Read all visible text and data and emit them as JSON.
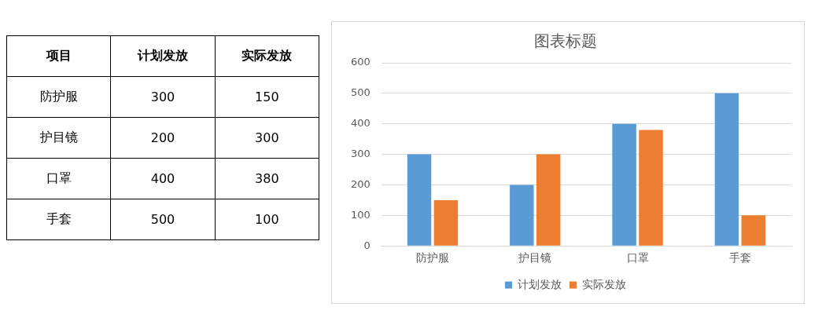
{
  "chart_data": [
    {
      "type": "other",
      "annotations": [
        "项目",
        "计划发放",
        "实际发放",
        "防护服",
        "300",
        "150",
        "护目镜",
        "200",
        "300",
        "口罩",
        "400",
        "380",
        "手套",
        "500",
        "100"
      ]
    },
    {
      "type": "bar",
      "title": "图表标题",
      "categories": [
        "防护服",
        "护目镜",
        "口罩",
        "手套"
      ],
      "series": [
        {
          "name": "计划发放",
          "color": "#5b9bd5",
          "values": [
            300,
            200,
            400,
            500
          ]
        },
        {
          "name": "实际发放",
          "color": "#ed7d31",
          "values": [
            150,
            300,
            380,
            100
          ]
        }
      ],
      "ylim": [
        0,
        600
      ],
      "yticks": [
        0,
        100,
        200,
        300,
        400,
        500,
        600
      ],
      "grid": "y",
      "legend": "bottom"
    }
  ]
}
